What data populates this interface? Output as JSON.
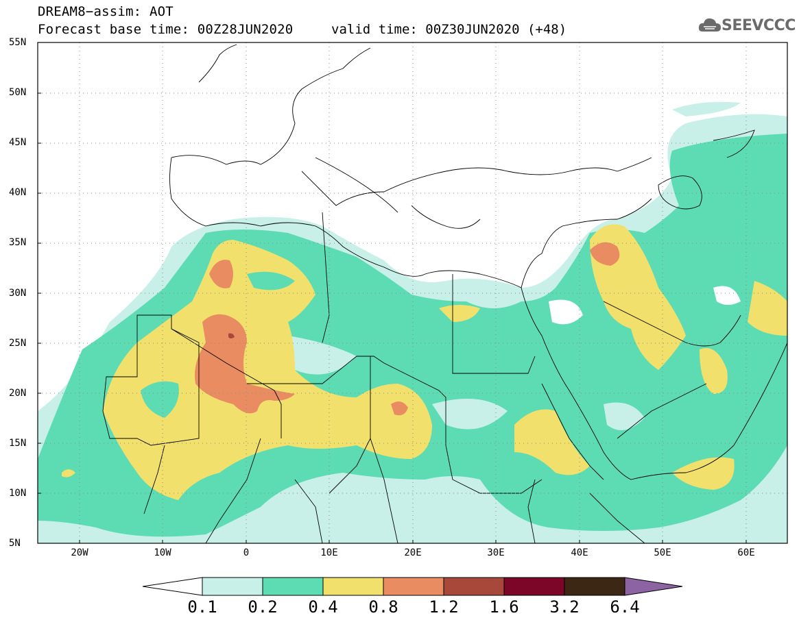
{
  "header": {
    "line1": "DREAM8−assim: AOT",
    "base_time_text": "Forecast base time: 00Z28JUN2020",
    "valid_time_text": "valid time: 00Z30JUN2020 (+48)"
  },
  "logo": {
    "text": "SEEVCCC",
    "icon": "cloud-icon"
  },
  "map": {
    "lat_range": [
      5,
      55
    ],
    "lon_range": [
      -25,
      65
    ],
    "lat_labels": [
      "55N",
      "50N",
      "45N",
      "40N",
      "35N",
      "30N",
      "25N",
      "20N",
      "15N",
      "10N",
      "5N"
    ],
    "lon_labels": [
      "20W",
      "10W",
      "0",
      "10E",
      "20E",
      "30E",
      "40E",
      "50E",
      "60E"
    ],
    "grid": "dotted"
  },
  "colorbar": {
    "labels": [
      "0.1",
      "0.2",
      "0.4",
      "0.8",
      "1.2",
      "1.6",
      "3.2",
      "6.4"
    ],
    "colors": [
      "#c8f0e8",
      "#5ddcb4",
      "#f2e06c",
      "#ea8c62",
      "#a8483a",
      "#7c0628",
      "#3c2614",
      "#8c64a4"
    ]
  }
}
